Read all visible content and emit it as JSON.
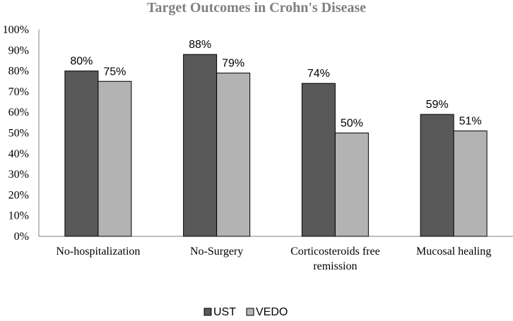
{
  "chart_data": {
    "type": "bar",
    "title": "Target Outcomes in Crohn's Disease",
    "xlabel": "",
    "ylabel": "",
    "ylim": [
      0,
      100
    ],
    "y_ticks": [
      "0%",
      "10%",
      "20%",
      "30%",
      "40%",
      "50%",
      "60%",
      "70%",
      "80%",
      "90%",
      "100%"
    ],
    "categories": [
      [
        "No-hospitalization"
      ],
      [
        "No-Surgery"
      ],
      [
        "Corticosteroids free",
        "remission"
      ],
      [
        "Mucosal healing"
      ]
    ],
    "series": [
      {
        "name": "UST",
        "color": "#595959",
        "values": [
          80,
          88,
          74,
          59
        ],
        "labels": [
          "80%",
          "88%",
          "74%",
          "59%"
        ]
      },
      {
        "name": "VEDO",
        "color": "#b3b3b3",
        "values": [
          75,
          79,
          50,
          51
        ],
        "labels": [
          "75%",
          "79%",
          "50%",
          "51%"
        ]
      }
    ],
    "legend_position": "bottom",
    "grid": false
  }
}
